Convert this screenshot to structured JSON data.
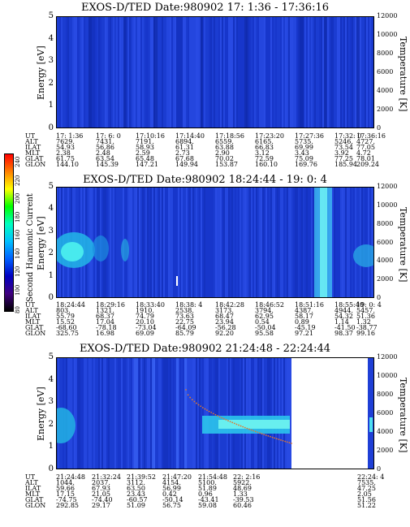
{
  "chart_data": [
    {
      "type": "heatmap",
      "title": "EXOS-D/TED   Date:980902  17: 1:36 - 17:36:16",
      "ylabel": "Energy [eV]",
      "ylabel_right": "Temperature [K]",
      "ylim": [
        0,
        5
      ],
      "ylim_right": [
        0,
        12000
      ],
      "yticks": [
        "0",
        "1",
        "2",
        "3",
        "4",
        "5"
      ],
      "yticks_right": [
        "0",
        "2000",
        "4000",
        "6000",
        "8000",
        "10000",
        "12000"
      ],
      "columns": [
        "17: 1:36",
        "17: 6: 0",
        "17:10:16",
        "17:14:40",
        "17:18:56",
        "17:23:20",
        "17:27:36",
        "17:32: 0",
        "17:36:16"
      ],
      "rows": [
        {
          "label": "UT",
          "values": [
            "17: 1:36",
            "17: 6: 0",
            "17:10:16",
            "17:14:40",
            "17:18:56",
            "17:23:20",
            "17:27:36",
            "17:32: 0",
            "17:36:16"
          ]
        },
        {
          "label": "ALT",
          "values": [
            "7629.",
            "7431.",
            "7191.",
            "6894.",
            "6559.",
            "6165.",
            "5735.",
            "5246.",
            "4727."
          ]
        },
        {
          "label": "ILAT",
          "values": [
            "54.93",
            "56.86",
            "58.93",
            "61.31",
            "63.88",
            "66.83",
            "69.99",
            "73.54",
            "77.05"
          ]
        },
        {
          "label": "MLT",
          "values": [
            "2.38",
            "2.48",
            "2.59",
            "2.73",
            "2.90",
            "3.12",
            "3.43",
            "3.92",
            "4.72"
          ]
        },
        {
          "label": "GLAT",
          "values": [
            "61.75",
            "63.54",
            "65.48",
            "67.68",
            "70.02",
            "72.59",
            "75.09",
            "77.25",
            "78.01"
          ]
        },
        {
          "label": "GLON",
          "values": [
            "144.10",
            "145.39",
            "147.21",
            "149.94",
            "153.87",
            "160.10",
            "169.76",
            "185.94",
            "209.24"
          ]
        }
      ]
    },
    {
      "type": "heatmap",
      "title": "EXOS-D/TED   Date:980902  18:24:44 - 19: 0: 4",
      "ylabel": "Energy [eV]",
      "ylabel_right": "Temperature [K]",
      "ylim": [
        0,
        5
      ],
      "ylim_right": [
        0,
        12000
      ],
      "yticks": [
        "0",
        "1",
        "2",
        "3",
        "4",
        "5"
      ],
      "yticks_right": [
        "0",
        "2000",
        "4000",
        "6000",
        "8000",
        "10000",
        "12000"
      ],
      "columns": [
        "18:24:44",
        "18:29:16",
        "18:33:40",
        "18:38: 4",
        "18:42:28",
        "18:46:52",
        "18:51:16",
        "18:55:40",
        "19: 0: 4"
      ],
      "rows": [
        {
          "label": "UT",
          "values": [
            "18:24:44",
            "18:29:16",
            "18:33:40",
            "18:38: 4",
            "18:42:28",
            "18:46:52",
            "18:51:16",
            "18:55:40",
            "19: 0: 4"
          ]
        },
        {
          "label": "ALT",
          "values": [
            "803.",
            "1321.",
            "1910.",
            "2538.",
            "3173.",
            "3794.",
            "4387.",
            "4944.",
            "5457."
          ]
        },
        {
          "label": "ILAT",
          "values": [
            "55.79",
            "68.37",
            "74.79",
            "73.63",
            "68.47",
            "62.95",
            "58.17",
            "54.32",
            "51.36"
          ]
        },
        {
          "label": "MLT",
          "values": [
            "15.52",
            "17.04",
            "20.10",
            "22.75",
            "23.94",
            "0.54",
            "0.89",
            "1.14",
            "1.32"
          ]
        },
        {
          "label": "GLAT",
          "values": [
            "-68.60",
            "-78.18",
            "-73.04",
            "-64.09",
            "-56.28",
            "-50.04",
            "-45.19",
            "-41.50",
            "-38.77"
          ]
        },
        {
          "label": "GLON",
          "values": [
            "325.75",
            "16.98",
            "69.09",
            "85.79",
            "92.20",
            "95.58",
            "97.21",
            "98.37",
            "99.16"
          ]
        }
      ]
    },
    {
      "type": "heatmap",
      "title": "EXOS-D/TED   Date:980902  21:24:48 - 22:24:44",
      "ylabel": "Energy [eV]",
      "ylabel_right": "Temperature [K]",
      "ylim": [
        0,
        5
      ],
      "ylim_right": [
        0,
        12000
      ],
      "yticks": [
        "0",
        "1",
        "2",
        "3",
        "4",
        "5"
      ],
      "yticks_right": [
        "0",
        "2000",
        "4000",
        "6000",
        "8000",
        "10000",
        "12000"
      ],
      "columns": [
        "21:24:48",
        "21:32:24",
        "21:39:52",
        "21:47:20",
        "21:54:48",
        "22: 2:16",
        "22:24: 4"
      ],
      "rows": [
        {
          "label": "UT",
          "values": [
            "21:24:48",
            "21:32:24",
            "21:39:52",
            "21:47:20",
            "21:54:48",
            "22: 2:16",
            "22:24: 4"
          ]
        },
        {
          "label": "ALT",
          "values": [
            "1044.",
            "2037.",
            "3112.",
            "4154.",
            "5100.",
            "5922.",
            "7535."
          ]
        },
        {
          "label": "ILAT",
          "values": [
            "59.66",
            "67.93",
            "63.50",
            "56.99",
            "51.89",
            "48.69",
            "47.25"
          ]
        },
        {
          "label": "MLT",
          "values": [
            "17.15",
            "21.05",
            "23.43",
            "0.42",
            "0.96",
            "1.33",
            "2.05"
          ]
        },
        {
          "label": "GLAT",
          "values": [
            "-74.75",
            "-74.40",
            "-60.57",
            "-50.14",
            "-43.41",
            "-39.53",
            "51.56"
          ]
        },
        {
          "label": "GLON",
          "values": [
            "292.85",
            "29.17",
            "51.09",
            "56.75",
            "59.08",
            "60.46",
            "51.22"
          ]
        }
      ]
    }
  ],
  "colorbar": {
    "label": "Second Harmonic Current",
    "ticks": [
      "240",
      "220",
      "200",
      "180",
      "160",
      "140",
      "120",
      "100",
      "80"
    ],
    "colors": [
      "#ff0000",
      "#ff8000",
      "#ffff00",
      "#00ff00",
      "#00ffc0",
      "#00c0ff",
      "#0060ff",
      "#0000c0",
      "#400080",
      "#000000"
    ]
  }
}
